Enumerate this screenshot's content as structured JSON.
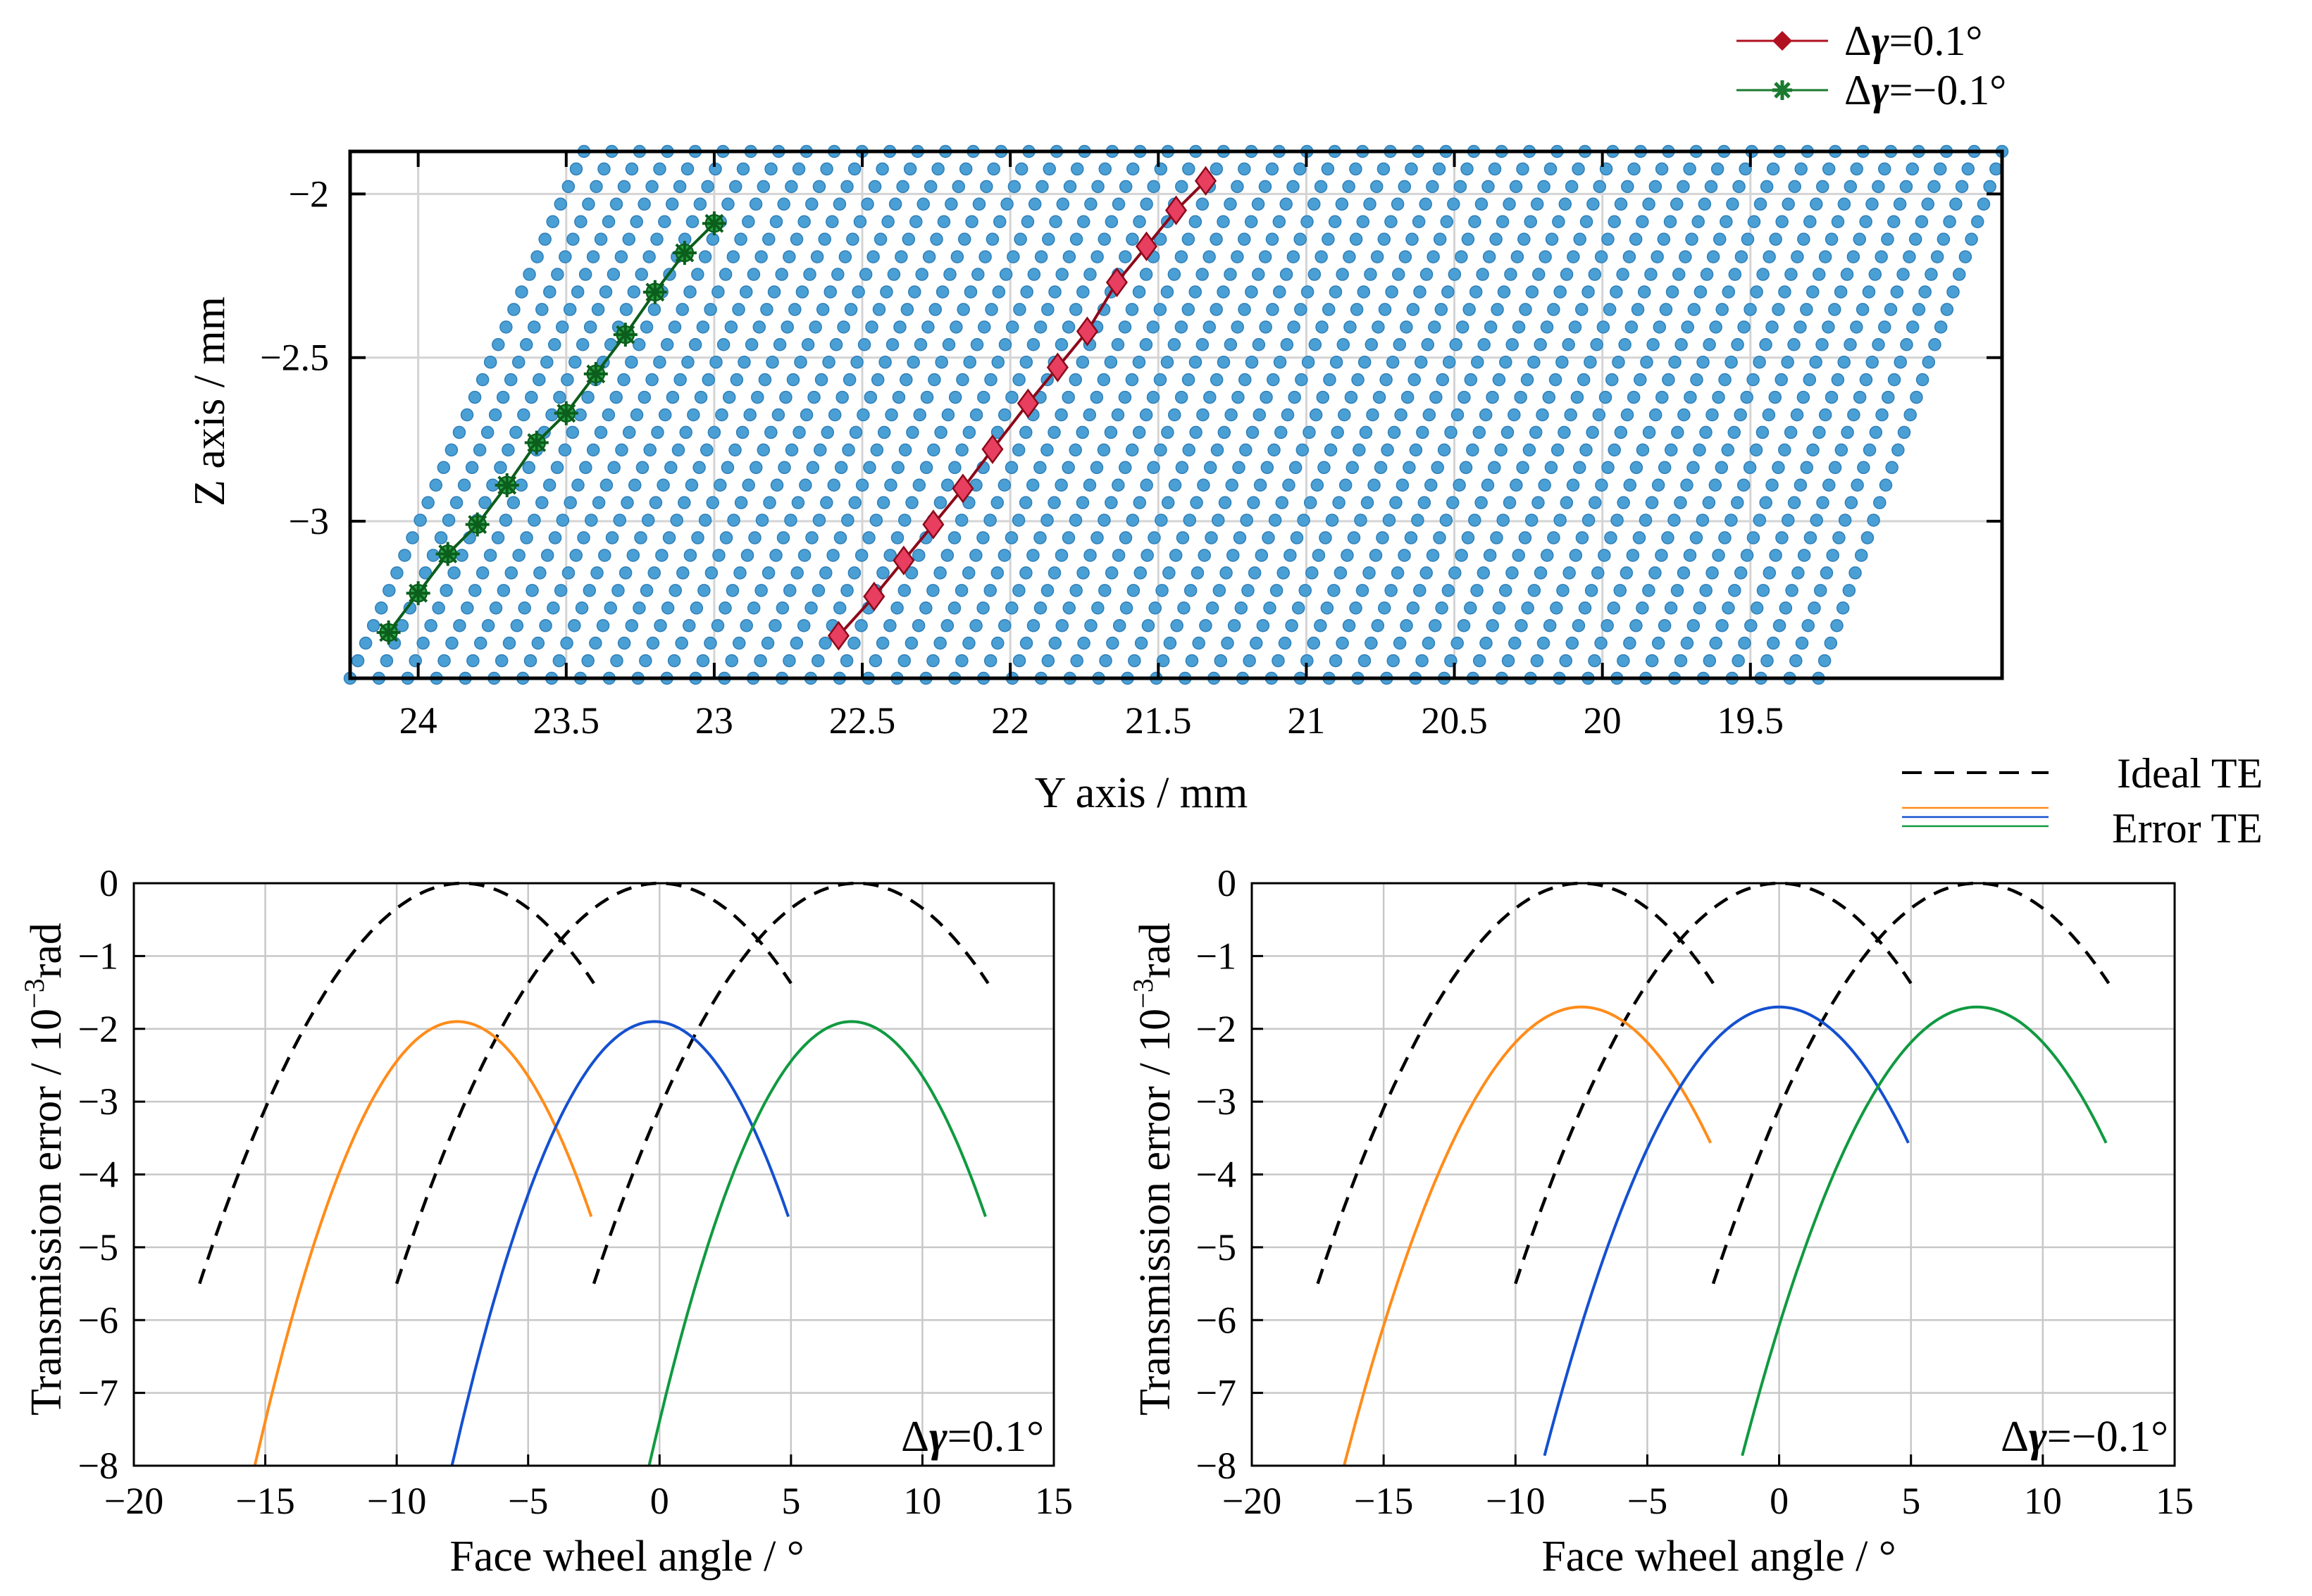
{
  "chart_data": [
    {
      "type": "scatter",
      "title": "",
      "xlabel": "Y axis / mm",
      "ylabel": "Z axis / mm",
      "xlim": [
        24.23,
        18.65
      ],
      "ylim": [
        -3.48,
        -1.87
      ],
      "x_ticks": [
        24,
        23.5,
        23,
        22.5,
        22,
        21.5,
        21,
        20.5,
        20,
        19.5
      ],
      "x_tick_labels": [
        "24",
        "23.5",
        "23",
        "22.5",
        "22",
        "21.5",
        "21",
        "20.5",
        "20",
        "19.5"
      ],
      "y_ticks": [
        -2,
        -2.5,
        -3
      ],
      "y_tick_labels": [
        "−2",
        "−2.5",
        "−3"
      ],
      "grid": true,
      "legend_position": "top-right-outside",
      "grid_points": {
        "color": "#4a9fd4",
        "edge_color": "#2f7fb8",
        "columns": 52,
        "rows": 31,
        "bottom_z": -3.48,
        "top_z": -1.87,
        "bottom_left_y": 24.23,
        "bottom_right_y": 19.27,
        "top_left_y": 23.44,
        "top_right_y": 18.65
      },
      "series": [
        {
          "name": "Δγ=0.1°",
          "label_delta": "Δ",
          "label_gamma": "γ",
          "label_value": "=0.1°",
          "color": "#e83e5f",
          "line_color": "#8b0a1a",
          "legend_color": "#b01020",
          "marker": "diamond",
          "y": [
            22.58,
            22.46,
            22.36,
            22.26,
            22.16,
            22.06,
            21.94,
            21.84,
            21.74,
            21.64,
            21.54,
            21.44,
            21.34
          ],
          "z": [
            -3.35,
            -3.23,
            -3.12,
            -3.01,
            -2.9,
            -2.78,
            -2.64,
            -2.53,
            -2.42,
            -2.27,
            -2.16,
            -2.05,
            -1.96
          ]
        },
        {
          "name": "Δγ=−0.1°",
          "label_delta": "Δ",
          "label_gamma": "γ",
          "label_value": "=−0.1°",
          "color": "#2ea84a",
          "line_color": "#0c5e1c",
          "legend_color": "#1a7a30",
          "marker": "star",
          "y": [
            24.1,
            24.0,
            23.9,
            23.8,
            23.7,
            23.6,
            23.5,
            23.4,
            23.3,
            23.2,
            23.1,
            23.0
          ],
          "z": [
            -3.34,
            -3.22,
            -3.1,
            -3.01,
            -2.89,
            -2.76,
            -2.67,
            -2.55,
            -2.43,
            -2.3,
            -2.18,
            -2.09
          ]
        }
      ]
    },
    {
      "type": "line",
      "title": "",
      "xlabel": "Face wheel angle / °",
      "ylabel_prefix": "Transmission error / 10",
      "ylabel_sup": "−3",
      "ylabel_suffix": "rad",
      "annotation_delta": "Δ",
      "annotation_gamma": "γ",
      "annotation_value": "=0.1°",
      "xlim": [
        -20,
        15
      ],
      "ylim": [
        -8,
        0
      ],
      "x_ticks": [
        -20,
        -15,
        -10,
        -5,
        0,
        5,
        10,
        15
      ],
      "x_tick_labels": [
        "−20",
        "−15",
        "−10",
        "−5",
        "0",
        "5",
        "10",
        "15"
      ],
      "y_ticks": [
        0,
        -1,
        -2,
        -3,
        -4,
        -5,
        -6,
        -7,
        -8
      ],
      "y_tick_labels": [
        "0",
        "−1",
        "−2",
        "−3",
        "−4",
        "−5",
        "−6",
        "−7",
        "−8"
      ],
      "grid": true,
      "ideal_series": [
        {
          "name": "Ideal TE",
          "center": -7.5,
          "x_start": -17.5,
          "x_end": -2.5,
          "peak": 0,
          "curvature": 0.055,
          "color": "#000000",
          "dashed": true
        },
        {
          "name": "Ideal TE",
          "center": 0,
          "x_start": -10,
          "x_end": 5,
          "peak": 0,
          "curvature": 0.055,
          "color": "#000000",
          "dashed": true
        },
        {
          "name": "Ideal TE",
          "center": 7.5,
          "x_start": -2.5,
          "x_end": 12.5,
          "peak": 0,
          "curvature": 0.055,
          "color": "#000000",
          "dashed": true
        }
      ],
      "error_series": [
        {
          "name": "Error TE",
          "center": -7.7,
          "x_start": -15.4,
          "x_end": -2.6,
          "peak": -1.9,
          "curvature": 0.103,
          "color": "#ff8c1a"
        },
        {
          "name": "Error TE",
          "center": -0.2,
          "x_start": -7.9,
          "x_end": 4.9,
          "peak": -1.9,
          "curvature": 0.103,
          "color": "#1450d0"
        },
        {
          "name": "Error TE",
          "center": 7.3,
          "x_start": -0.4,
          "x_end": 12.4,
          "peak": -1.9,
          "curvature": 0.103,
          "color": "#109a40"
        }
      ]
    },
    {
      "type": "line",
      "title": "",
      "xlabel": "Face wheel angle / °",
      "ylabel_prefix": "Transmission error / 10",
      "ylabel_sup": "−3",
      "ylabel_suffix": "rad",
      "annotation_delta": "Δ",
      "annotation_gamma": "γ",
      "annotation_value": "=−0.1°",
      "xlim": [
        -20,
        15
      ],
      "ylim": [
        -8,
        0
      ],
      "x_ticks": [
        -20,
        -15,
        -10,
        -5,
        0,
        5,
        10,
        15
      ],
      "x_tick_labels": [
        "−20",
        "−15",
        "−10",
        "−5",
        "0",
        "5",
        "10",
        "15"
      ],
      "y_ticks": [
        0,
        -1,
        -2,
        -3,
        -4,
        -5,
        -6,
        -7,
        -8
      ],
      "y_tick_labels": [
        "0",
        "−1",
        "−2",
        "−3",
        "−4",
        "−5",
        "−6",
        "−7",
        "−8"
      ],
      "grid": true,
      "ideal_series": [
        {
          "name": "Ideal TE",
          "center": -7.5,
          "x_start": -17.5,
          "x_end": -2.5,
          "peak": 0,
          "curvature": 0.055,
          "color": "#000000",
          "dashed": true
        },
        {
          "name": "Ideal TE",
          "center": 0,
          "x_start": -10,
          "x_end": 5,
          "peak": 0,
          "curvature": 0.055,
          "color": "#000000",
          "dashed": true
        },
        {
          "name": "Ideal TE",
          "center": 7.5,
          "x_start": -2.5,
          "x_end": 12.5,
          "peak": 0,
          "curvature": 0.055,
          "color": "#000000",
          "dashed": true
        }
      ],
      "error_series": [
        {
          "name": "Error TE",
          "center": -7.5,
          "x_start": -16.5,
          "x_end": -2.6,
          "peak": -1.7,
          "curvature": 0.0778,
          "color": "#ff8c1a"
        },
        {
          "name": "Error TE",
          "center": 0,
          "x_start": -8.9,
          "x_end": 4.9,
          "peak": -1.7,
          "curvature": 0.0778,
          "color": "#1450d0"
        },
        {
          "name": "Error TE",
          "center": 7.5,
          "x_start": -1.4,
          "x_end": 12.4,
          "peak": -1.7,
          "curvature": 0.0778,
          "color": "#109a40"
        }
      ]
    }
  ],
  "te_legend": {
    "ideal_label": "Ideal TE",
    "error_label": "Error TE",
    "ideal_color": "#000000",
    "error_colors": [
      "#ff8c1a",
      "#1450d0",
      "#109a40"
    ]
  }
}
